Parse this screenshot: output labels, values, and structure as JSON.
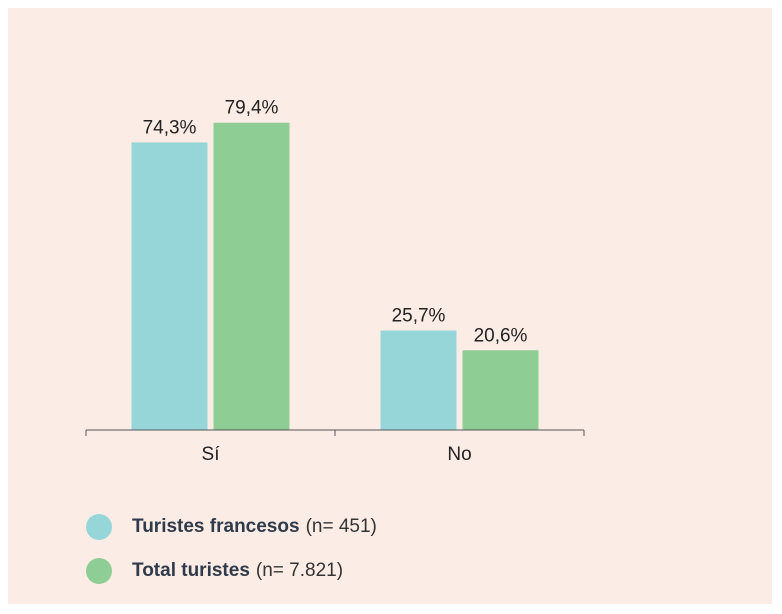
{
  "chart_data": {
    "type": "bar",
    "categories": [
      "Sí",
      "No"
    ],
    "series": [
      {
        "name": "Turistes francesos",
        "values": [
          74.3,
          25.7
        ],
        "labels": [
          "74,3%",
          "25,7%"
        ],
        "color": "#96d6d9"
      },
      {
        "name": "Total turistes",
        "values": [
          79.4,
          20.6
        ],
        "labels": [
          "79,4%",
          "20,6%"
        ],
        "color": "#8ecd94"
      }
    ],
    "ylim": [
      0,
      100
    ],
    "grid": false
  },
  "legend": {
    "items": [
      {
        "name": "Turistes francesos",
        "note": "(n= 451)",
        "color": "#96d6d9"
      },
      {
        "name": "Total turistes",
        "note": "(n= 7.821)",
        "color": "#8ecd94"
      }
    ]
  },
  "colors": {
    "background": "#fcece6",
    "axis": "#555555"
  }
}
